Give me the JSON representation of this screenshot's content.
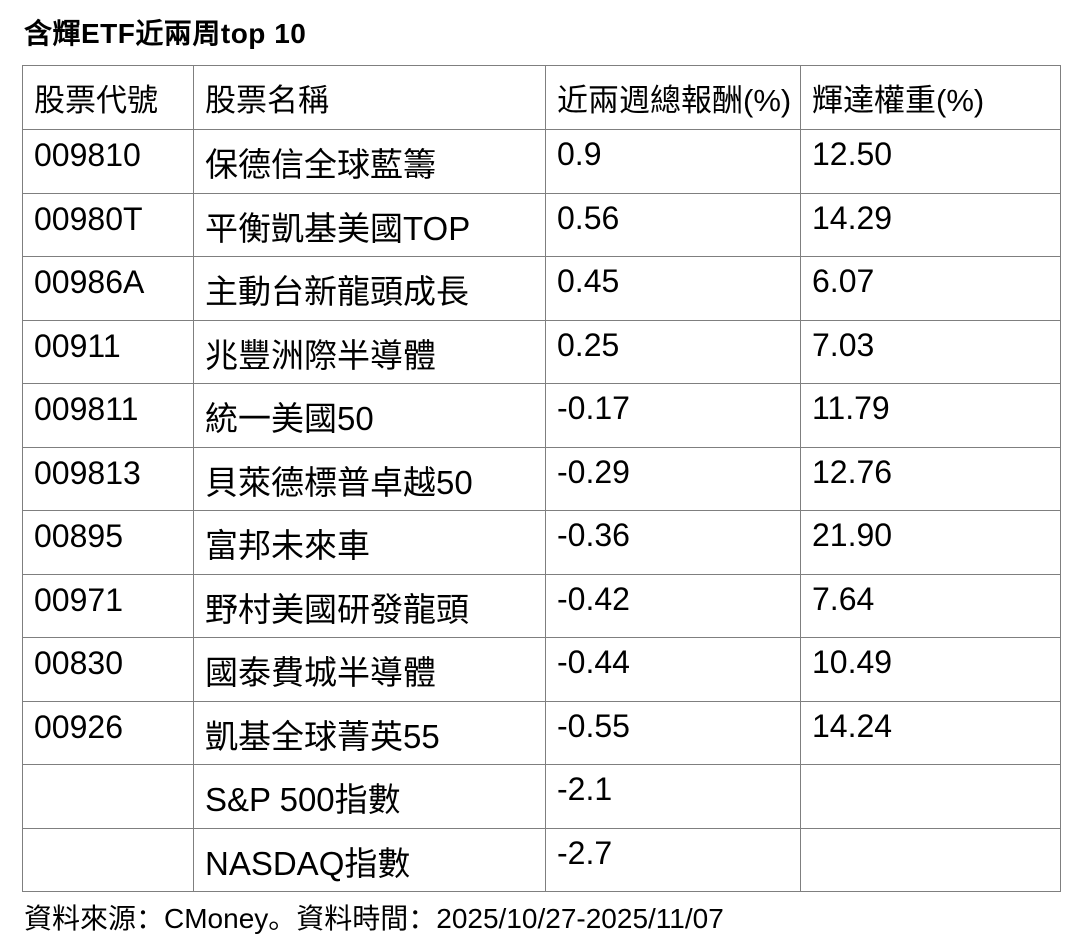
{
  "page": {
    "title": "含輝ETF近兩周top 10",
    "footer": "資料來源：CMoney。資料時間：2025/10/27-2025/11/07"
  },
  "table": {
    "headers": [
      "股票代號",
      "股票名稱",
      "近兩週總報酬(%)",
      "輝達權重(%)"
    ],
    "rows": [
      {
        "code": "009810",
        "name": "保德信全球藍籌",
        "return_pct": "0.9",
        "weight_pct": "12.50"
      },
      {
        "code": "00980T",
        "name": "平衡凱基美國TOP",
        "return_pct": "0.56",
        "weight_pct": "14.29"
      },
      {
        "code": "00986A",
        "name": "主動台新龍頭成長",
        "return_pct": "0.45",
        "weight_pct": "6.07"
      },
      {
        "code": "00911",
        "name": "兆豐洲際半導體",
        "return_pct": "0.25",
        "weight_pct": "7.03"
      },
      {
        "code": "009811",
        "name": "統一美國50",
        "return_pct": "-0.17",
        "weight_pct": "11.79"
      },
      {
        "code": "009813",
        "name": "貝萊德標普卓越50",
        "return_pct": "-0.29",
        "weight_pct": "12.76"
      },
      {
        "code": "00895",
        "name": "富邦未來車",
        "return_pct": "-0.36",
        "weight_pct": "21.90"
      },
      {
        "code": "00971",
        "name": "野村美國研發龍頭",
        "return_pct": "-0.42",
        "weight_pct": "7.64"
      },
      {
        "code": "00830",
        "name": "國泰費城半導體",
        "return_pct": "-0.44",
        "weight_pct": "10.49"
      },
      {
        "code": "00926",
        "name": "凱基全球菁英55",
        "return_pct": "-0.55",
        "weight_pct": "14.24"
      },
      {
        "code": "",
        "name": "S&P 500指數",
        "return_pct": "-2.1",
        "weight_pct": ""
      },
      {
        "code": "",
        "name": "NASDAQ指數",
        "return_pct": "-2.7",
        "weight_pct": ""
      }
    ]
  },
  "chart_data": {
    "type": "table",
    "title": "含輝ETF近兩周top 10",
    "columns": [
      "股票代號",
      "股票名稱",
      "近兩週總報酬(%)",
      "輝達權重(%)"
    ],
    "rows": [
      [
        "009810",
        "保德信全球藍籌",
        0.9,
        12.5
      ],
      [
        "00980T",
        "平衡凱基美國TOP",
        0.56,
        14.29
      ],
      [
        "00986A",
        "主動台新龍頭成長",
        0.45,
        6.07
      ],
      [
        "00911",
        "兆豐洲際半導體",
        0.25,
        7.03
      ],
      [
        "009811",
        "統一美國50",
        -0.17,
        11.79
      ],
      [
        "009813",
        "貝萊德標普卓越50",
        -0.29,
        12.76
      ],
      [
        "00895",
        "富邦未來車",
        -0.36,
        21.9
      ],
      [
        "00971",
        "野村美國研發龍頭",
        -0.42,
        7.64
      ],
      [
        "00830",
        "國泰費城半導體",
        -0.44,
        10.49
      ],
      [
        "00926",
        "凱基全球菁英55",
        -0.55,
        14.24
      ],
      [
        "",
        "S&P 500指數",
        -2.1,
        null
      ],
      [
        "",
        "NASDAQ指數",
        -2.7,
        null
      ]
    ],
    "source_note": "資料來源：CMoney。資料時間：2025/10/27-2025/11/07"
  },
  "colors": {
    "background": "#ffffff",
    "text": "#000000",
    "table_border": "#7f7f7f"
  }
}
